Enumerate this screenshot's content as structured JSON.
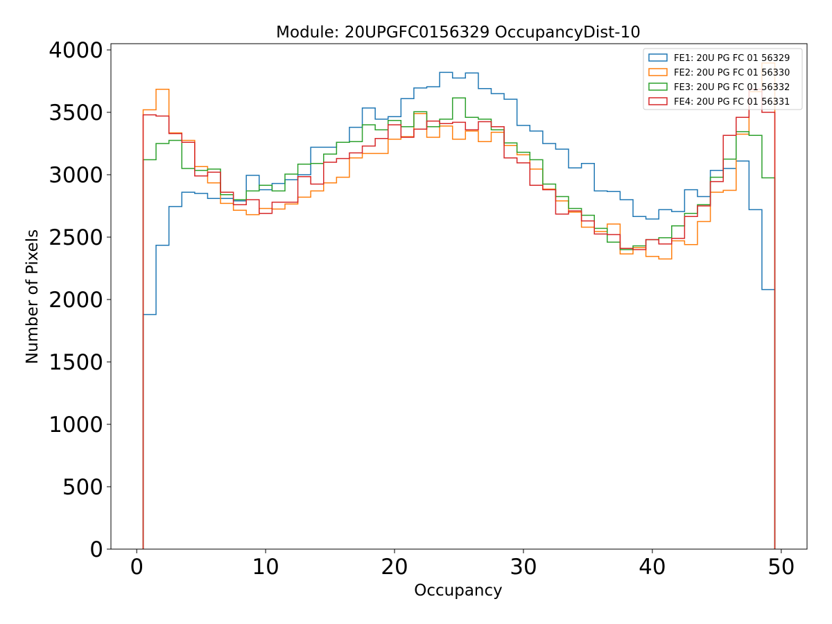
{
  "chart_data": {
    "type": "histogram-step",
    "title": "Module: 20UPGFC0156329 OccupancyDist-10",
    "xlabel": "Occupancy",
    "ylabel": "Number of Pixels",
    "xlim": [
      -2,
      52
    ],
    "ylim": [
      0,
      4050
    ],
    "bin_start": 0.5,
    "bin_width": 1,
    "xticks": [
      0,
      10,
      20,
      30,
      40,
      50
    ],
    "yticks": [
      0,
      500,
      1000,
      1500,
      2000,
      2500,
      3000,
      3500,
      4000
    ],
    "grid": false,
    "legend_position": "top-right",
    "series": [
      {
        "name": "FE1: 20U PG FC 01 56329",
        "color": "#1f77b4",
        "values": [
          1880,
          2435,
          2745,
          2860,
          2850,
          2810,
          2810,
          2790,
          2995,
          2880,
          2930,
          2960,
          3000,
          3220,
          3220,
          3260,
          3380,
          3535,
          3445,
          3465,
          3610,
          3695,
          3705,
          3820,
          3775,
          3815,
          3690,
          3650,
          3605,
          3395,
          3350,
          3250,
          3205,
          3055,
          3090,
          2870,
          2865,
          2800,
          2665,
          2645,
          2720,
          2705,
          2880,
          2825,
          3035,
          3050,
          3110,
          2720,
          2080
        ]
      },
      {
        "name": "FE2: 20U PG FC 01 56330",
        "color": "#ff7f0e",
        "values": [
          3520,
          3685,
          3335,
          3275,
          3065,
          2935,
          2770,
          2715,
          2680,
          2730,
          2725,
          2765,
          2820,
          2870,
          2935,
          2980,
          3135,
          3170,
          3170,
          3285,
          3305,
          3490,
          3300,
          3390,
          3285,
          3350,
          3265,
          3340,
          3235,
          3160,
          3045,
          2885,
          2790,
          2700,
          2580,
          2545,
          2605,
          2365,
          2415,
          2345,
          2325,
          2470,
          2440,
          2625,
          2860,
          2875,
          3325,
          3665,
          3895
        ]
      },
      {
        "name": "FE3: 20U PG FC 01 56332",
        "color": "#2ca02c",
        "values": [
          3120,
          3250,
          3275,
          3050,
          3035,
          3045,
          2840,
          2800,
          2870,
          2915,
          2870,
          3005,
          3085,
          3090,
          3165,
          3260,
          3265,
          3400,
          3360,
          3435,
          3385,
          3505,
          3385,
          3445,
          3615,
          3460,
          3445,
          3360,
          3255,
          3180,
          3120,
          2925,
          2825,
          2730,
          2675,
          2570,
          2460,
          2400,
          2430,
          2480,
          2495,
          2590,
          2690,
          2760,
          2980,
          3125,
          3345,
          3315,
          2975
        ]
      },
      {
        "name": "FE4: 20U PG FC 01 56331",
        "color": "#d62728",
        "values": [
          3480,
          3470,
          3330,
          3260,
          2990,
          3020,
          2860,
          2760,
          2800,
          2690,
          2780,
          2780,
          2985,
          2925,
          3100,
          3130,
          3175,
          3230,
          3290,
          3400,
          3300,
          3365,
          3430,
          3410,
          3420,
          3360,
          3425,
          3385,
          3135,
          3095,
          2915,
          2880,
          2685,
          2710,
          2630,
          2525,
          2520,
          2410,
          2400,
          2480,
          2445,
          2490,
          2665,
          2750,
          2945,
          3315,
          3460,
          3685,
          3500
        ]
      }
    ]
  }
}
